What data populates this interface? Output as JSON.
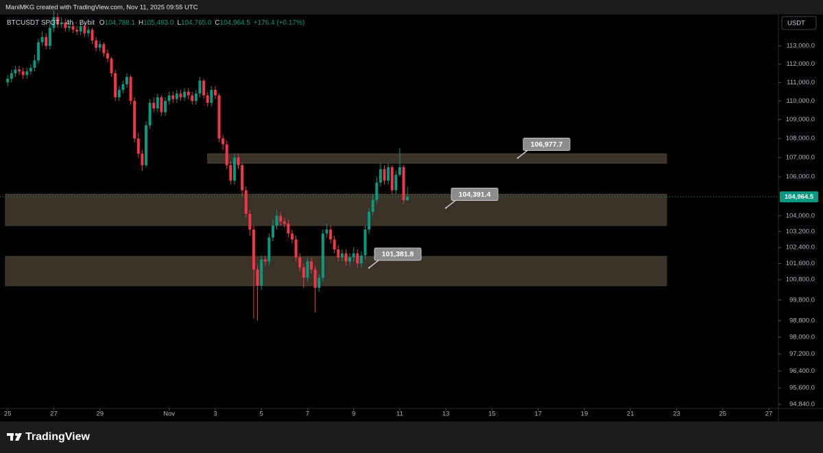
{
  "watermark": "ManiMKG created with TradingView.com, Nov 11, 2025 09:55 UTC",
  "header": {
    "symbol": "BTCUSDT SPOT · 4h · Bybit",
    "ohlc": [
      {
        "key": "O",
        "value": "104,788.1"
      },
      {
        "key": "H",
        "value": "105,483.0"
      },
      {
        "key": "L",
        "value": "104,765.0"
      },
      {
        "key": "C",
        "value": "104,964.5"
      }
    ],
    "change": "+176.4 (+0.17%)"
  },
  "currency_button": "USDT",
  "footer_brand": "TradingView",
  "chart_data": {
    "type": "candlestick",
    "log_scale": true,
    "grid": false,
    "up_color": "#089981",
    "down_color": "#f23645",
    "zone_color": "#3a3227",
    "ylim": [
      94681,
      114717
    ],
    "xlim": [
      -2,
      200.5
    ],
    "yticks": [
      {
        "value": 113000,
        "label": "113,000.0"
      },
      {
        "value": 112000,
        "label": "112,000.0"
      },
      {
        "value": 111000,
        "label": "111,000.0"
      },
      {
        "value": 110000,
        "label": "110,000.0"
      },
      {
        "value": 109000,
        "label": "109,000.0"
      },
      {
        "value": 108000,
        "label": "108,000.0"
      },
      {
        "value": 107000,
        "label": "107,000.0"
      },
      {
        "value": 106000,
        "label": "106,000.0"
      },
      {
        "value": 104000,
        "label": "104,000.0"
      },
      {
        "value": 103200,
        "label": "103,200.0"
      },
      {
        "value": 102400,
        "label": "102,400.0"
      },
      {
        "value": 101600,
        "label": "101,600.0"
      },
      {
        "value": 100800,
        "label": "100,800.0"
      },
      {
        "value": 99800,
        "label": "99,800.0"
      },
      {
        "value": 98800,
        "label": "98,800.0"
      },
      {
        "value": 98000,
        "label": "98,000.0"
      },
      {
        "value": 97200,
        "label": "97,200.0"
      },
      {
        "value": 96400,
        "label": "96,400.0"
      },
      {
        "value": 95600,
        "label": "95,600.0"
      },
      {
        "value": 94840,
        "label": "94,840.0"
      }
    ],
    "xticks": [
      {
        "value": 0,
        "label": "25"
      },
      {
        "value": 12,
        "label": "27"
      },
      {
        "value": 24,
        "label": "29"
      },
      {
        "value": 42,
        "label": "Nov"
      },
      {
        "value": 54,
        "label": "3"
      },
      {
        "value": 66,
        "label": "5"
      },
      {
        "value": 78,
        "label": "7"
      },
      {
        "value": 90,
        "label": "9"
      },
      {
        "value": 102,
        "label": "11"
      },
      {
        "value": 114,
        "label": "13"
      },
      {
        "value": 126,
        "label": "15"
      },
      {
        "value": 138,
        "label": "17"
      },
      {
        "value": 150,
        "label": "19"
      },
      {
        "value": 162,
        "label": "21"
      },
      {
        "value": 174,
        "label": "23"
      },
      {
        "value": 186,
        "label": "25"
      },
      {
        "value": 198,
        "label": "27"
      }
    ],
    "open": [
      111000,
      111200,
      111500,
      111700,
      111600,
      111400,
      111600,
      111800,
      112200,
      113200,
      113500,
      113000,
      114000,
      114600,
      114200,
      114300,
      114000,
      114100,
      113900,
      113800,
      114100,
      113700,
      113900,
      113300,
      112900,
      113100,
      112600,
      112300,
      111500,
      110200,
      110600,
      110900,
      111300,
      110000,
      108000,
      107200,
      106600,
      108700,
      109900,
      109600,
      110200,
      109400,
      110000,
      110300,
      110100,
      110400,
      110200,
      110500,
      110300,
      110000,
      110400,
      111100,
      110300,
      109900,
      110600,
      110300,
      108000,
      107700,
      106600,
      105800,
      107000,
      106600,
      105300,
      104100,
      103300,
      101300,
      100500,
      101800,
      101700,
      102900,
      103500,
      104000,
      103700,
      103600,
      103100,
      102800,
      101900,
      101400,
      100900,
      101700,
      101300,
      100400,
      100900,
      103100,
      103300,
      102800,
      102300,
      101900,
      102100,
      101700,
      101900,
      102100,
      101600,
      102000,
      103300,
      104200,
      104800,
      105700,
      106400,
      105800,
      106500,
      105300,
      106100,
      106500,
      104788.1
    ],
    "high": [
      111400,
      111700,
      111900,
      111900,
      111800,
      111800,
      112000,
      112500,
      113400,
      113800,
      113700,
      114300,
      115000,
      114800,
      114600,
      114500,
      114400,
      114300,
      114100,
      114300,
      114300,
      114100,
      114000,
      113500,
      113300,
      113200,
      112800,
      112400,
      111700,
      110800,
      111100,
      111500,
      111400,
      110200,
      108300,
      107400,
      108900,
      110100,
      110200,
      110400,
      110300,
      110200,
      110500,
      110500,
      110600,
      110600,
      110700,
      110700,
      110500,
      110600,
      111300,
      111200,
      110500,
      110800,
      110800,
      110400,
      108200,
      107900,
      106800,
      107200,
      107200,
      106700,
      105500,
      104300,
      103500,
      101500,
      102000,
      102000,
      103100,
      103800,
      104300,
      104200,
      103900,
      103800,
      103300,
      103000,
      102100,
      101600,
      101900,
      101900,
      101500,
      101100,
      103300,
      103600,
      103500,
      103000,
      102500,
      102300,
      102300,
      102100,
      102400,
      102300,
      102200,
      103500,
      104400,
      105100,
      106000,
      106700,
      106600,
      106700,
      106600,
      106300,
      107500,
      106600,
      105483
    ],
    "low": [
      110800,
      111000,
      111300,
      111400,
      111200,
      111200,
      111400,
      111600,
      112000,
      113000,
      112800,
      112800,
      113800,
      114000,
      114000,
      113800,
      113800,
      113700,
      113600,
      113600,
      113500,
      113500,
      113100,
      112700,
      112700,
      112400,
      112100,
      111300,
      110000,
      110000,
      110400,
      110700,
      109800,
      107800,
      107000,
      106300,
      106500,
      108500,
      109400,
      109400,
      109200,
      109200,
      109800,
      109900,
      109900,
      110000,
      110000,
      110100,
      109800,
      109800,
      110200,
      110100,
      109700,
      109700,
      110100,
      107800,
      107400,
      106400,
      105600,
      105600,
      106400,
      105000,
      103900,
      103000,
      98900,
      98800,
      100300,
      101500,
      101500,
      102700,
      103300,
      103500,
      103400,
      102900,
      102600,
      101700,
      101200,
      100400,
      100700,
      101100,
      99200,
      100200,
      100700,
      102900,
      102600,
      102100,
      101700,
      101700,
      101500,
      101500,
      101700,
      101400,
      101400,
      101800,
      103100,
      104000,
      104600,
      105500,
      105600,
      105600,
      105100,
      105100,
      106000,
      104600,
      104765
    ],
    "close": [
      111200,
      111500,
      111700,
      111600,
      111400,
      111600,
      111800,
      112200,
      113200,
      113500,
      113000,
      114000,
      114600,
      114200,
      114300,
      114000,
      114100,
      113900,
      113800,
      114100,
      113700,
      113900,
      113300,
      112900,
      113100,
      112600,
      112300,
      111500,
      110200,
      110600,
      110900,
      111300,
      110000,
      108000,
      107200,
      106600,
      108700,
      109900,
      109600,
      110200,
      109400,
      110000,
      110300,
      110100,
      110400,
      110200,
      110500,
      110300,
      110000,
      110400,
      111100,
      110300,
      109900,
      110600,
      110300,
      108000,
      107700,
      106600,
      105800,
      107000,
      106600,
      105300,
      104100,
      103300,
      101300,
      100500,
      101800,
      101700,
      102900,
      103500,
      104000,
      103700,
      103600,
      103100,
      102800,
      101900,
      101400,
      100900,
      101700,
      101300,
      100400,
      100900,
      103100,
      103300,
      102800,
      102300,
      101900,
      102100,
      101700,
      101900,
      102100,
      101600,
      102000,
      103300,
      104200,
      104800,
      105700,
      106400,
      105800,
      106500,
      105300,
      106100,
      106500,
      104800,
      104964.5
    ],
    "zones": [
      {
        "top": 107200,
        "bottom": 106700,
        "start": 52,
        "end": 171.4
      },
      {
        "top": 105100,
        "bottom": 103500,
        "start": -0.6,
        "end": 171.4
      },
      {
        "top": 101950,
        "bottom": 100500,
        "start": -0.6,
        "end": 171.4
      }
    ],
    "annotations": [
      {
        "value": 106977.7,
        "label": "106,977.7"
      },
      {
        "value": 104391.4,
        "label": "104,391.4"
      },
      {
        "value": 101381.8,
        "label": "101,381.8"
      }
    ],
    "last_price": {
      "value": 104964.5,
      "label": "104,964.5"
    }
  }
}
